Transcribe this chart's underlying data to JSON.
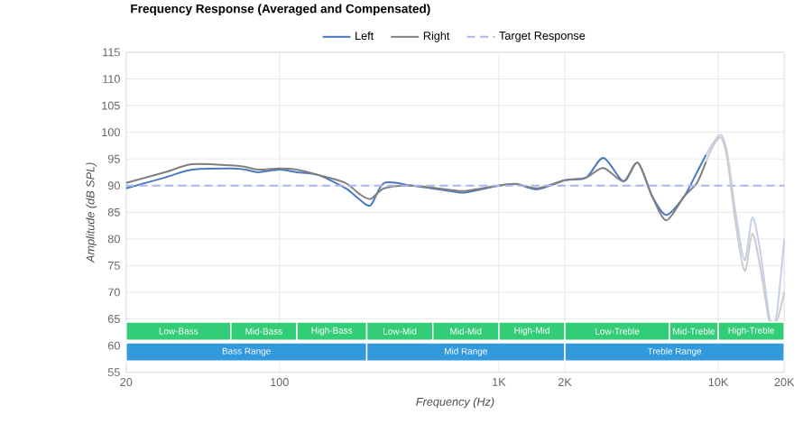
{
  "chart_data": {
    "type": "line",
    "title": "Frequency Response (Averaged and Compensated)",
    "xlabel": "Frequency (Hz)",
    "ylabel": "Amplitude (dB SPL)",
    "log": "x",
    "grid": true,
    "legend": "top",
    "line_style": "solid",
    "marker": "none",
    "xlim": [
      20,
      20000
    ],
    "ylim": [
      55,
      115
    ],
    "xticks": [
      20,
      100,
      {
        "value": 1000,
        "label": "1K"
      },
      {
        "value": 2000,
        "label": "2K"
      },
      {
        "value": 10000,
        "label": "10K"
      },
      {
        "value": 20000,
        "label": "20K"
      }
    ],
    "yticks": [
      55,
      60,
      65,
      70,
      75,
      80,
      85,
      90,
      95,
      100,
      105,
      110,
      115
    ],
    "series": [
      {
        "name": "Left",
        "color": "#4a78c0",
        "x": [
          20,
          30,
          40,
          60,
          70,
          80,
          100,
          120,
          150,
          200,
          230,
          260,
          300,
          400,
          600,
          700,
          1000,
          1200,
          1500,
          2000,
          2500,
          3000,
          3700,
          4300,
          5000,
          5800,
          7000,
          8000,
          8800
        ],
        "values": [
          89.5,
          91.5,
          93,
          93.2,
          93,
          92.5,
          93,
          92.5,
          92,
          89.5,
          87.5,
          86.3,
          90.5,
          90,
          89,
          88.7,
          90,
          90.3,
          89.3,
          91,
          91.5,
          95.2,
          90.8,
          94.3,
          88,
          84.5,
          88,
          92.5,
          95.8
        ]
      },
      {
        "name": "Right",
        "color": "#808080",
        "x": [
          20,
          30,
          40,
          60,
          70,
          80,
          100,
          120,
          150,
          200,
          230,
          260,
          300,
          400,
          600,
          700,
          1000,
          1200,
          1500,
          2000,
          2500,
          3000,
          3700,
          4300,
          5000,
          5800,
          7000,
          8000,
          8800
        ],
        "values": [
          90.5,
          92.5,
          94,
          93.8,
          93.5,
          93,
          93.2,
          93,
          92,
          90.5,
          88.5,
          87.5,
          89.5,
          90,
          89.2,
          89,
          90,
          90.3,
          89.5,
          91,
          91.5,
          93.3,
          90.8,
          94.3,
          88,
          83.5,
          88,
          90.5,
          94.5
        ]
      },
      {
        "name": "Target Response",
        "color": "#aab4ee",
        "line_style": "dashed",
        "x": [
          20,
          20000
        ],
        "values": [
          90,
          90
        ]
      },
      {
        "color": "#c4d0e6",
        "x": [
          8800,
          9500,
          10300,
          11000,
          12000,
          13200,
          14300,
          15500,
          17000,
          17500,
          18500,
          20000
        ],
        "values": [
          95.8,
          98,
          99.5,
          96,
          85,
          76,
          84,
          78,
          66,
          64.5,
          66,
          80
        ]
      },
      {
        "color": "#cccccc",
        "x": [
          8800,
          9500,
          10300,
          11000,
          12000,
          13200,
          14300,
          15500,
          17000,
          17500,
          18500,
          20000
        ],
        "values": [
          94.5,
          97.5,
          99,
          95,
          83,
          74,
          81,
          75,
          65,
          64.5,
          64.5,
          70
        ]
      }
    ],
    "bands": [
      {
        "axis": "x",
        "from": 20,
        "to": 60,
        "label": "Low-Bass",
        "color": "#33cc77"
      },
      {
        "axis": "x",
        "from": 60,
        "to": 120,
        "label": "Mid-Bass",
        "color": "#33cc77"
      },
      {
        "axis": "x",
        "from": 120,
        "to": 250,
        "label": "High-Bass",
        "color": "#33cc77"
      },
      {
        "axis": "x",
        "from": 250,
        "to": 500,
        "label": "Low-Mid",
        "color": "#33cc77"
      },
      {
        "axis": "x",
        "from": 500,
        "to": 1000,
        "label": "Mid-Mid",
        "color": "#33cc77"
      },
      {
        "axis": "x",
        "from": 1000,
        "to": 2000,
        "label": "High-Mid",
        "color": "#33cc77"
      },
      {
        "axis": "x",
        "from": 2000,
        "to": 6000,
        "label": "Low-Treble",
        "color": "#33cc77"
      },
      {
        "axis": "x",
        "from": 6000,
        "to": 10000,
        "label": "Mid-Treble",
        "color": "#33cc77"
      },
      {
        "axis": "x",
        "from": 10000,
        "to": 20000,
        "label": "High-Treble",
        "color": "#33cc77"
      },
      {
        "axis": "x",
        "from": 20,
        "to": 250,
        "label": "Bass Range",
        "color": "#3399dd"
      },
      {
        "axis": "x",
        "from": 250,
        "to": 2000,
        "label": "Mid Range",
        "color": "#3399dd"
      },
      {
        "axis": "x",
        "from": 2000,
        "to": 20000,
        "label": "Treble Range",
        "color": "#3399dd"
      }
    ]
  }
}
